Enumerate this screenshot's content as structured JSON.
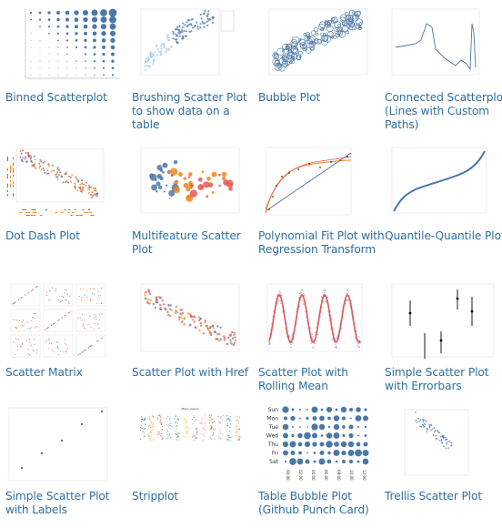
{
  "gallery": {
    "link_color": "#2f6fa3",
    "items": [
      {
        "label": "Binned Scatterplot"
      },
      {
        "label": "Brushing Scatter Plot to show data on a table"
      },
      {
        "label": "Bubble Plot"
      },
      {
        "label": "Connected Scatterplot (Lines with Custom Paths)"
      },
      {
        "label": "Dot Dash Plot"
      },
      {
        "label": "Multifeature Scatter Plot"
      },
      {
        "label": "Polynomial Fit Plot with Regression Transform"
      },
      {
        "label": "Quantile-Quantile Plot"
      },
      {
        "label": "Scatter Matrix"
      },
      {
        "label": "Scatter Plot with Href"
      },
      {
        "label": "Scatter Plot with Rolling Mean"
      },
      {
        "label": "Simple Scatter Plot with Errorbars"
      },
      {
        "label": "Simple Scatter Plot with Labels"
      },
      {
        "label": "Stripplot"
      },
      {
        "label": "Table Bubble Plot (Github Punch Card)"
      },
      {
        "label": "Trellis Scatter Plot"
      }
    ]
  },
  "thumb_text": {
    "stripplot_title": "Major_Genre",
    "punch_days": [
      "Sun",
      "Mon",
      "Tue",
      "Wed",
      "Thu",
      "Fri",
      "Sat"
    ],
    "punch_hours": [
      "00:00",
      "02:00",
      "04:00",
      "06:00",
      "08:00",
      "10:00",
      "12:00"
    ]
  }
}
